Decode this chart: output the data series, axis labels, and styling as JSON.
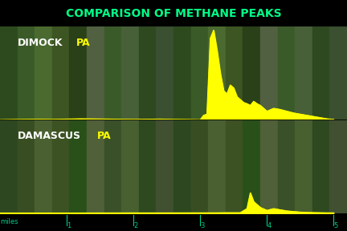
{
  "title": "COMPARISON OF METHANE PEAKS",
  "title_color": "#00ff88",
  "title_fontsize": 10,
  "bg_color": "#000000",
  "panel_bg_top": "#3a5a2a",
  "panel_bg_bottom": "#3a5030",
  "label_dimock": "DIMOCK",
  "label_damascus": "DAMASCUS",
  "label_pa": "PA",
  "label_white_color": "#ffffff",
  "label_yellow_color": "#ffff00",
  "yellow_fill": "#ffff00",
  "yellow_line": "#ffff00",
  "miles_label": "miles",
  "miles_ticks": [
    1,
    2,
    3,
    4,
    5
  ],
  "scale_color": "#00cc88",
  "dimock_x": [
    0.0,
    0.2,
    0.4,
    0.6,
    0.8,
    1.0,
    1.2,
    1.4,
    1.6,
    1.8,
    2.0,
    2.2,
    2.4,
    2.6,
    2.8,
    3.0,
    3.05,
    3.1,
    3.15,
    3.2,
    3.25,
    3.3,
    3.35,
    3.4,
    3.45,
    3.5,
    3.55,
    3.6,
    3.65,
    3.7,
    3.75,
    3.8,
    3.85,
    3.9,
    3.95,
    4.0,
    4.1,
    4.2,
    4.3,
    4.4,
    4.5,
    4.6,
    4.7,
    4.8,
    4.9,
    5.0
  ],
  "dimock_y": [
    0.05,
    0.08,
    0.1,
    0.12,
    0.1,
    0.15,
    0.2,
    0.18,
    0.15,
    0.12,
    0.1,
    0.12,
    0.15,
    0.1,
    0.08,
    0.05,
    0.8,
    1.0,
    14.0,
    15.4,
    12.0,
    8.0,
    5.0,
    4.5,
    6.0,
    5.5,
    4.0,
    3.5,
    3.0,
    2.8,
    2.5,
    3.2,
    2.8,
    2.5,
    2.0,
    1.5,
    2.0,
    1.8,
    1.5,
    1.2,
    1.0,
    0.8,
    0.6,
    0.4,
    0.2,
    0.1
  ],
  "damascus_x": [
    0.0,
    0.5,
    1.0,
    1.5,
    2.0,
    2.5,
    3.0,
    3.2,
    3.4,
    3.6,
    3.7,
    3.75,
    3.8,
    3.85,
    3.9,
    4.0,
    4.1,
    4.2,
    4.3,
    4.4,
    4.5,
    4.6,
    4.7,
    4.8,
    4.9,
    5.0
  ],
  "damascus_y": [
    0.05,
    0.05,
    0.05,
    0.06,
    0.07,
    0.07,
    0.08,
    0.08,
    0.1,
    0.1,
    0.8,
    3.5,
    2.0,
    1.5,
    1.0,
    0.5,
    0.8,
    0.6,
    0.4,
    0.3,
    0.2,
    0.15,
    0.12,
    0.1,
    0.08,
    0.08
  ],
  "ymax": 16.0
}
